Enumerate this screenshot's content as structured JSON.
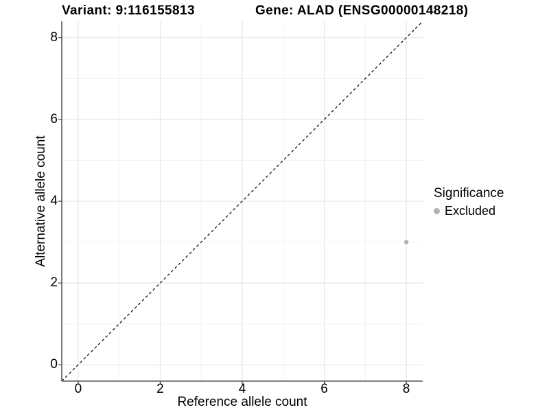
{
  "title": {
    "variant": "Variant: 9:116155813",
    "gene": "Gene: ALAD (ENSG00000148218)"
  },
  "axes": {
    "x_label": "Reference allele count",
    "y_label": "Alternative allele count"
  },
  "legend": {
    "title": "Significance",
    "items": [
      {
        "label": "Excluded",
        "color": "#b0b0b0"
      }
    ]
  },
  "chart_data": {
    "type": "scatter",
    "title": "Variant: 9:116155813   Gene: ALAD (ENSG00000148218)",
    "xlabel": "Reference allele count",
    "ylabel": "Alternative allele count",
    "xlim": [
      -0.4,
      8.4
    ],
    "ylim": [
      -0.4,
      8.4
    ],
    "x_major_ticks": [
      0,
      2,
      4,
      6,
      8
    ],
    "y_major_ticks": [
      0,
      2,
      4,
      6,
      8
    ],
    "x_minor_ticks": [
      1,
      3,
      5,
      7
    ],
    "y_minor_ticks": [
      1,
      3,
      5,
      7
    ],
    "grid": true,
    "legend_position": "right",
    "series": [
      {
        "name": "Excluded",
        "color": "#b0b0b0",
        "marker": "circle",
        "points": [
          {
            "x": 8,
            "y": 3
          }
        ]
      }
    ],
    "reference_line": {
      "type": "identity",
      "slope": 1,
      "intercept": 0,
      "style": "dashed",
      "color": "#000000"
    }
  },
  "colors": {
    "background": "#ffffff",
    "grid_major": "#e6e6e6",
    "grid_minor": "#f1f1f1",
    "axis": "#333333",
    "tick": "#333333",
    "text": "#000000",
    "point": "#b0b0b0"
  }
}
